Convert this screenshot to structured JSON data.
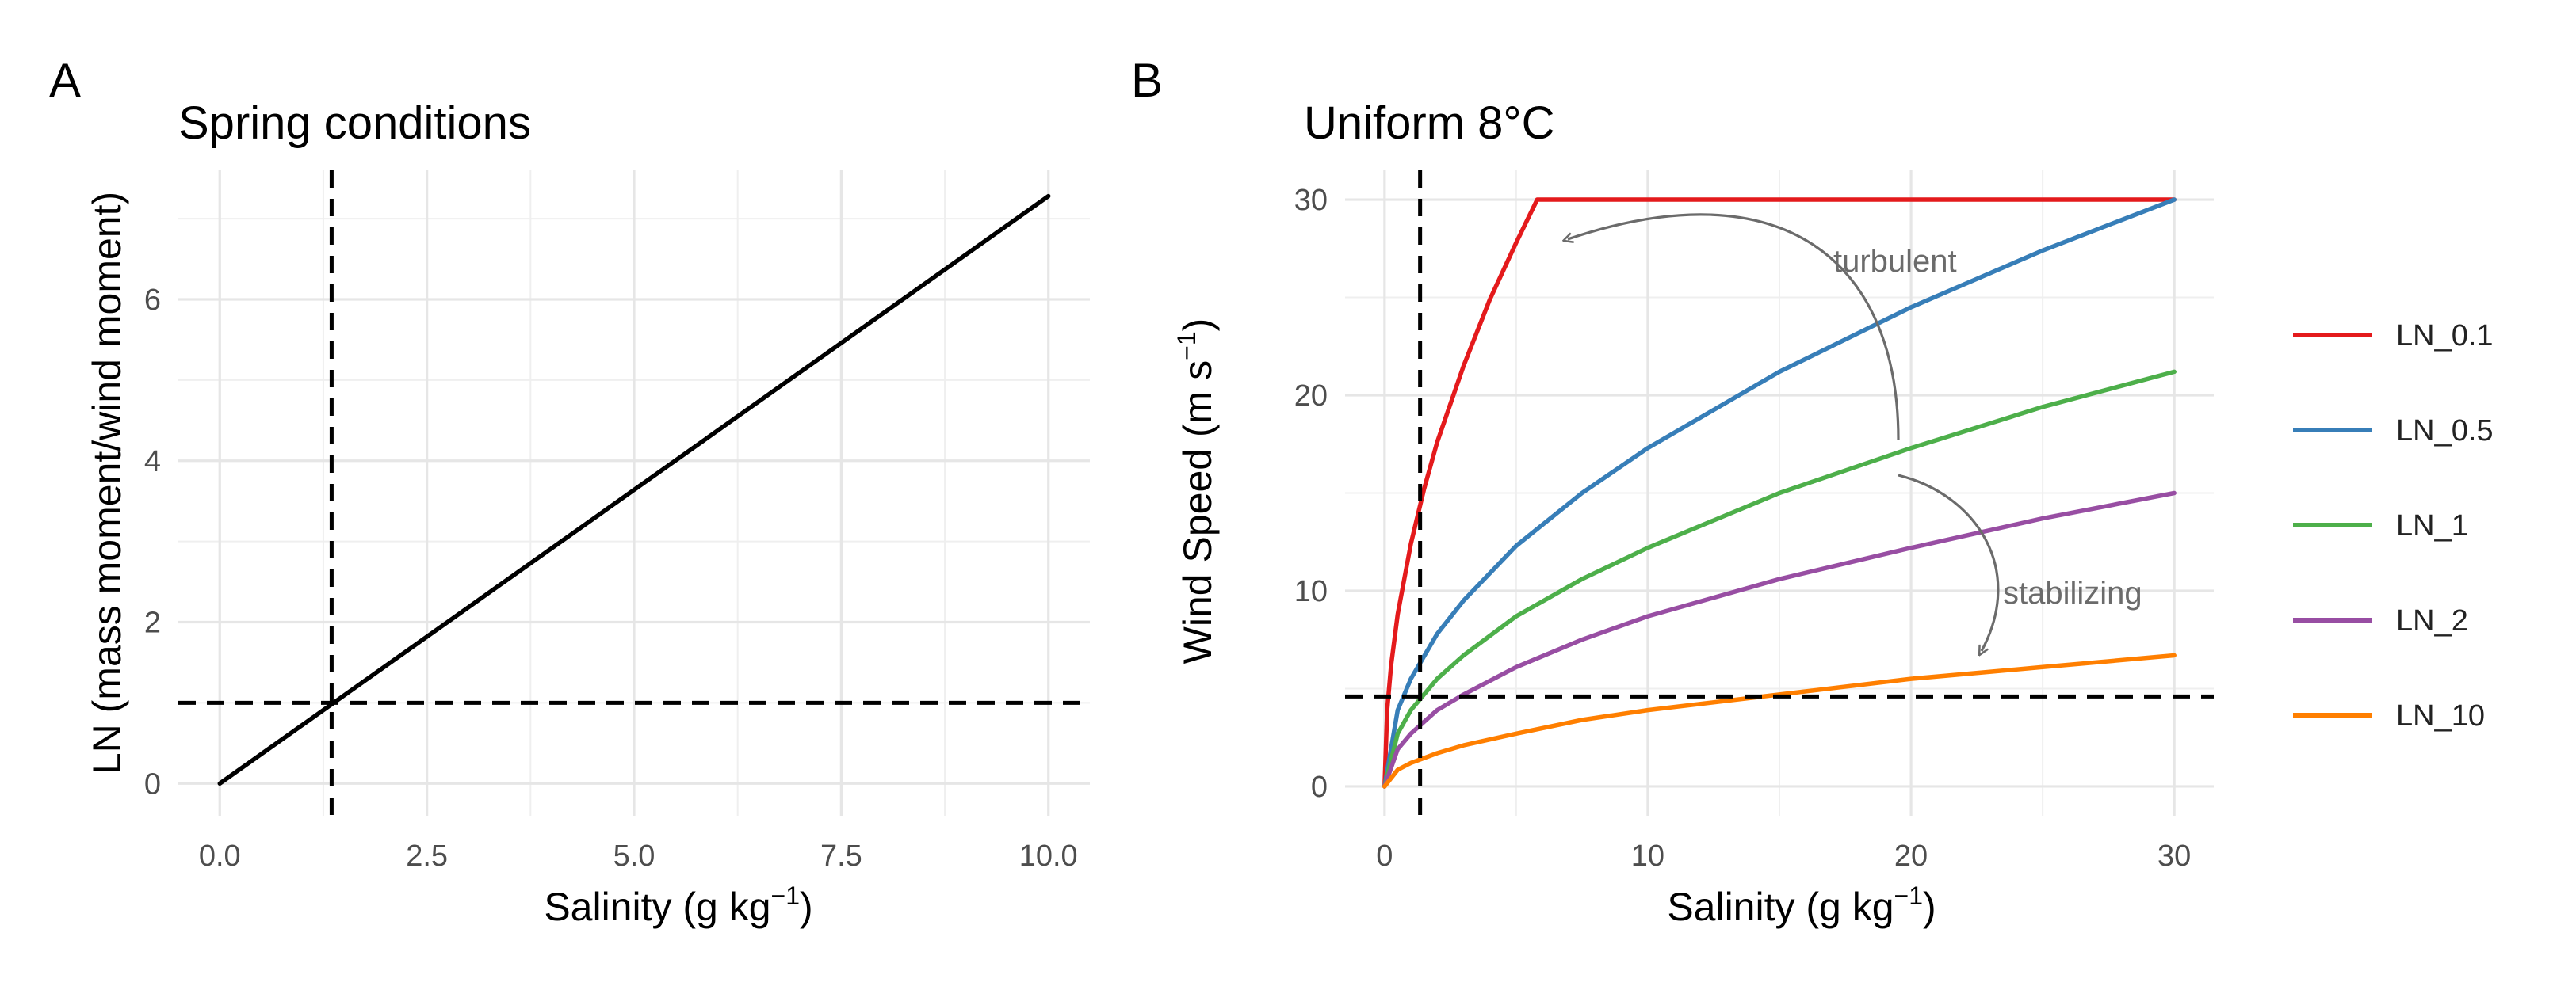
{
  "panels": {
    "a": {
      "letter": "A",
      "xlabel": {
        "text": "Salinity (g kg",
        "sup": "−1",
        "close": ")"
      },
      "ylabel": "LN (mass moment/wind moment)"
    },
    "b": {
      "letter": "B",
      "xlabel": {
        "text": "Salinity (g kg",
        "sup": "−1",
        "close": ")"
      },
      "ylabel": {
        "text": "Wind Speed (m s",
        "sup": "−1",
        "close": ")"
      },
      "annotations": {
        "turbulent": "turbulent",
        "stabilizing": "stabilizing"
      }
    }
  },
  "chart_data": [
    {
      "type": "line",
      "title": "Spring conditions",
      "xlabel": "Salinity (g kg−1)",
      "ylabel": "LN (mass moment/wind moment)",
      "xlim": [
        -0.5,
        10.5
      ],
      "ylim": [
        -0.4,
        7.6
      ],
      "xticks": [
        0,
        2.5,
        5,
        7.5,
        10
      ],
      "xtick_labels": [
        "0.0",
        "2.5",
        "5.0",
        "7.5",
        "10.0"
      ],
      "yticks": [
        0,
        2,
        4,
        6
      ],
      "ytick_labels": [
        "0",
        "2",
        "4",
        "6"
      ],
      "grid": true,
      "series": [
        {
          "color": "#000000",
          "x": [
            0,
            10
          ],
          "y": [
            0,
            7.28
          ]
        }
      ],
      "reference_lines": {
        "vertical_x": 1.35,
        "horizontal_y": 1.0,
        "style": "dashed"
      }
    },
    {
      "type": "line",
      "title": "Uniform 8°C",
      "xlabel": "Salinity (g kg−1)",
      "ylabel": "Wind Speed (m s−1)",
      "xlim": [
        -1.5,
        31.5
      ],
      "ylim": [
        -1.5,
        31.5
      ],
      "xticks": [
        0,
        10,
        20,
        30
      ],
      "xtick_labels": [
        "0",
        "10",
        "20",
        "30"
      ],
      "yticks": [
        0,
        10,
        20,
        30
      ],
      "ytick_labels": [
        "0",
        "10",
        "20",
        "30"
      ],
      "grid": true,
      "legend_position": "right",
      "series": [
        {
          "name": "LN_0.1",
          "color": "#e41a1c",
          "x": [
            0,
            0.1,
            0.25,
            0.5,
            1,
            1.5,
            2,
            3,
            4,
            5,
            5.8,
            10,
            15,
            20,
            25,
            30
          ],
          "y": [
            0,
            3.9,
            6.2,
            8.8,
            12.4,
            15.2,
            17.6,
            21.5,
            24.9,
            27.8,
            30,
            30,
            30,
            30,
            30,
            30
          ]
        },
        {
          "name": "LN_0.5",
          "color": "#377eb8",
          "x": [
            0,
            0.5,
            1,
            2,
            3,
            5,
            7.5,
            10,
            15,
            20,
            25,
            30
          ],
          "y": [
            0,
            3.9,
            5.5,
            7.8,
            9.5,
            12.3,
            15.0,
            17.3,
            21.2,
            24.5,
            27.4,
            30.0
          ]
        },
        {
          "name": "LN_1",
          "color": "#4daf4a",
          "x": [
            0,
            0.5,
            1,
            2,
            3,
            5,
            7.5,
            10,
            15,
            20,
            25,
            30
          ],
          "y": [
            0,
            2.7,
            3.9,
            5.5,
            6.7,
            8.7,
            10.6,
            12.2,
            15.0,
            17.3,
            19.4,
            21.2
          ]
        },
        {
          "name": "LN_2",
          "color": "#984ea3",
          "x": [
            0,
            0.5,
            1,
            2,
            3,
            5,
            7.5,
            10,
            15,
            20,
            25,
            30
          ],
          "y": [
            0,
            1.9,
            2.7,
            3.9,
            4.7,
            6.1,
            7.5,
            8.7,
            10.6,
            12.2,
            13.7,
            15.0
          ]
        },
        {
          "name": "LN_10",
          "color": "#ff7f00",
          "x": [
            0,
            0.5,
            1,
            2,
            3,
            5,
            7.5,
            10,
            15,
            20,
            25,
            30
          ],
          "y": [
            0,
            0.85,
            1.2,
            1.7,
            2.1,
            2.7,
            3.4,
            3.9,
            4.7,
            5.5,
            6.1,
            6.7
          ]
        }
      ],
      "reference_lines": {
        "vertical_x": 1.35,
        "horizontal_y": 4.6,
        "style": "dashed"
      }
    }
  ]
}
